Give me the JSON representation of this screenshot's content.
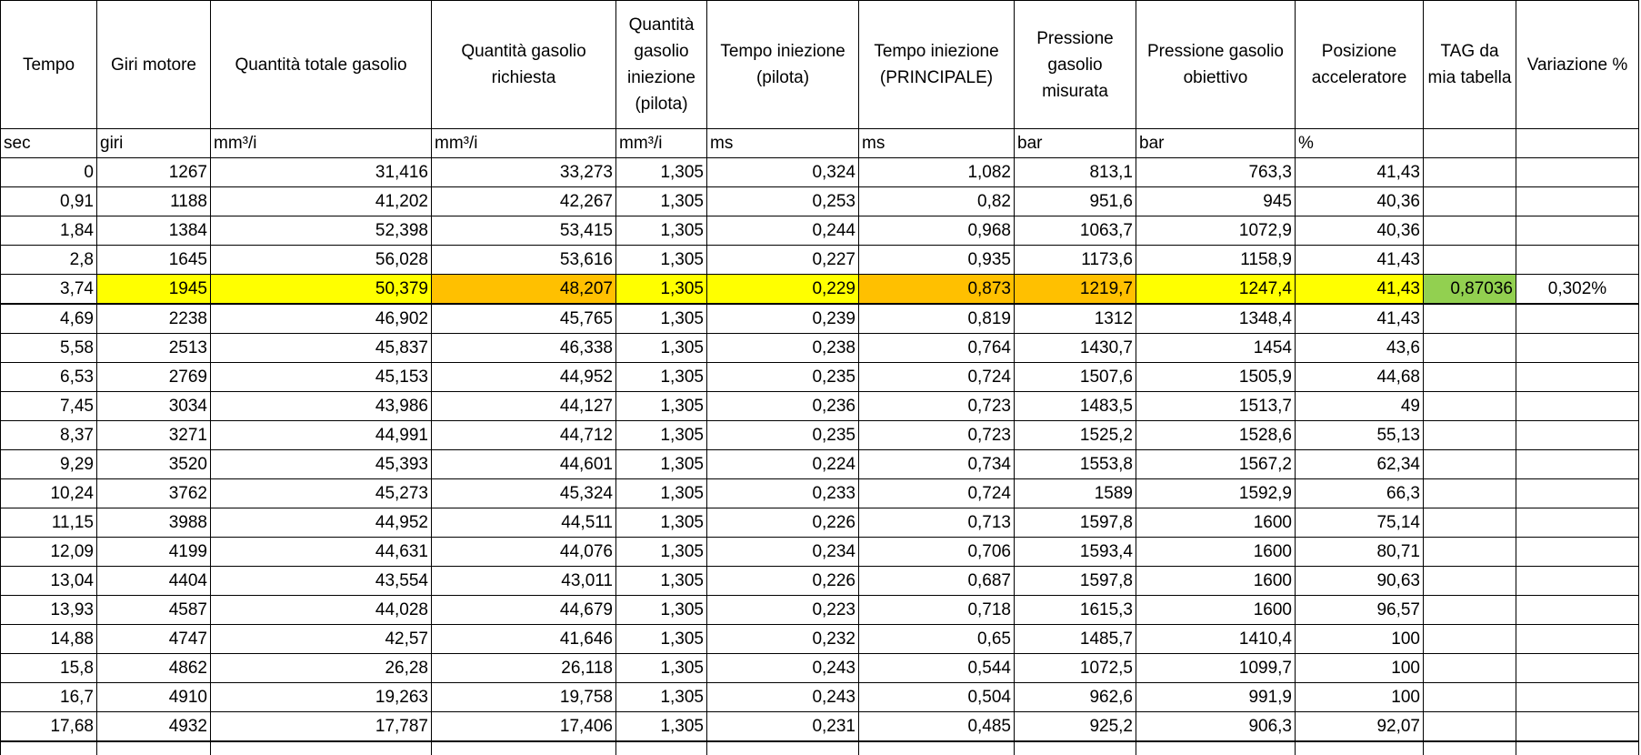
{
  "headers": [
    "Tempo",
    "Giri motore",
    "Quantità totale gasolio",
    "Quantità gasolio richiesta",
    "Quantità gasolio iniezione (pilota)",
    "Tempo iniezione (pilota)",
    "Tempo iniezione (PRINCIPALE)",
    "Pressione gasolio misurata",
    "Pressione gasolio obiettivo",
    "Posizione acceleratore",
    "TAG da mia tabella",
    "Variazione %"
  ],
  "units": [
    "sec",
    "giri",
    "mm³/i",
    "mm³/i",
    "mm³/i",
    "ms",
    "ms",
    "bar",
    "bar",
    "%",
    "",
    ""
  ],
  "rows": [
    [
      "0",
      "1267",
      "31,416",
      "33,273",
      "1,305",
      "0,324",
      "1,082",
      "813,1",
      "763,3",
      "41,43",
      "",
      ""
    ],
    [
      "0,91",
      "1188",
      "41,202",
      "42,267",
      "1,305",
      "0,253",
      "0,82",
      "951,6",
      "945",
      "40,36",
      "",
      ""
    ],
    [
      "1,84",
      "1384",
      "52,398",
      "53,415",
      "1,305",
      "0,244",
      "0,968",
      "1063,7",
      "1072,9",
      "40,36",
      "",
      ""
    ],
    [
      "2,8",
      "1645",
      "56,028",
      "53,616",
      "1,305",
      "0,227",
      "0,935",
      "1173,6",
      "1158,9",
      "41,43",
      "",
      ""
    ],
    [
      "3,74",
      "1945",
      "50,379",
      "48,207",
      "1,305",
      "0,229",
      "0,873",
      "1219,7",
      "1247,4",
      "41,43",
      "0,87036",
      "0,302%"
    ],
    [
      "4,69",
      "2238",
      "46,902",
      "45,765",
      "1,305",
      "0,239",
      "0,819",
      "1312",
      "1348,4",
      "41,43",
      "",
      ""
    ],
    [
      "5,58",
      "2513",
      "45,837",
      "46,338",
      "1,305",
      "0,238",
      "0,764",
      "1430,7",
      "1454",
      "43,6",
      "",
      ""
    ],
    [
      "6,53",
      "2769",
      "45,153",
      "44,952",
      "1,305",
      "0,235",
      "0,724",
      "1507,6",
      "1505,9",
      "44,68",
      "",
      ""
    ],
    [
      "7,45",
      "3034",
      "43,986",
      "44,127",
      "1,305",
      "0,236",
      "0,723",
      "1483,5",
      "1513,7",
      "49",
      "",
      ""
    ],
    [
      "8,37",
      "3271",
      "44,991",
      "44,712",
      "1,305",
      "0,235",
      "0,723",
      "1525,2",
      "1528,6",
      "55,13",
      "",
      ""
    ],
    [
      "9,29",
      "3520",
      "45,393",
      "44,601",
      "1,305",
      "0,224",
      "0,734",
      "1553,8",
      "1567,2",
      "62,34",
      "",
      ""
    ],
    [
      "10,24",
      "3762",
      "45,273",
      "45,324",
      "1,305",
      "0,233",
      "0,724",
      "1589",
      "1592,9",
      "66,3",
      "",
      ""
    ],
    [
      "11,15",
      "3988",
      "44,952",
      "44,511",
      "1,305",
      "0,226",
      "0,713",
      "1597,8",
      "1600",
      "75,14",
      "",
      ""
    ],
    [
      "12,09",
      "4199",
      "44,631",
      "44,076",
      "1,305",
      "0,234",
      "0,706",
      "1593,4",
      "1600",
      "80,71",
      "",
      ""
    ],
    [
      "13,04",
      "4404",
      "43,554",
      "43,011",
      "1,305",
      "0,226",
      "0,687",
      "1597,8",
      "1600",
      "90,63",
      "",
      ""
    ],
    [
      "13,93",
      "4587",
      "44,028",
      "44,679",
      "1,305",
      "0,223",
      "0,718",
      "1615,3",
      "1600",
      "96,57",
      "",
      ""
    ],
    [
      "14,88",
      "4747",
      "42,57",
      "41,646",
      "1,305",
      "0,232",
      "0,65",
      "1485,7",
      "1410,4",
      "100",
      "",
      ""
    ],
    [
      "15,8",
      "4862",
      "26,28",
      "26,118",
      "1,305",
      "0,243",
      "0,544",
      "1072,5",
      "1099,7",
      "100",
      "",
      ""
    ],
    [
      "16,7",
      "4910",
      "19,263",
      "19,758",
      "1,305",
      "0,243",
      "0,504",
      "962,6",
      "991,9",
      "100",
      "",
      ""
    ],
    [
      "17,68",
      "4932",
      "17,787",
      "17,406",
      "1,305",
      "0,231",
      "0,485",
      "925,2",
      "906,3",
      "92,07",
      "",
      ""
    ]
  ],
  "highlight_row": 4,
  "highlight_colors": {
    "yellow": "#ffff00",
    "orange": "#ffc000",
    "green": "#92d050"
  },
  "highlight_pattern": [
    "none",
    "yellow",
    "yellow",
    "orange",
    "yellow",
    "yellow",
    "orange",
    "orange",
    "yellow",
    "yellow",
    "green",
    "none"
  ]
}
